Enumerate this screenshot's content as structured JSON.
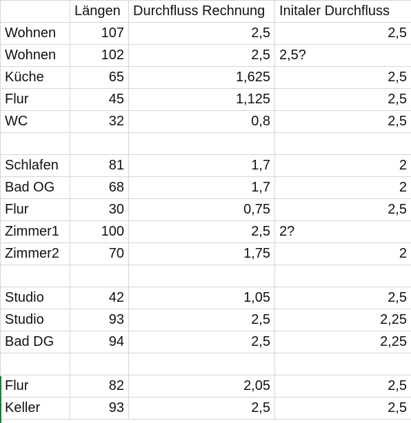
{
  "columns": {
    "room": "",
    "lengths": "Längen",
    "calc_flow": "Durchfluss Rechnung",
    "initial_flow": "Initaler Durchfluss"
  },
  "rows": [
    {
      "room": "Wohnen",
      "len": "107",
      "calc": "2,5",
      "init": "2,5",
      "init_align": "right"
    },
    {
      "room": "Wohnen",
      "len": "102",
      "calc": "2,5",
      "init": "2,5?",
      "init_align": "left"
    },
    {
      "room": "Küche",
      "len": "65",
      "calc": "1,625",
      "init": "2,5",
      "init_align": "right"
    },
    {
      "room": "Flur",
      "len": "45",
      "calc": "1,125",
      "init": "2,5",
      "init_align": "right"
    },
    {
      "room": "WC",
      "len": "32",
      "calc": "0,8",
      "init": "2,5",
      "init_align": "right"
    },
    {
      "room": "",
      "len": "",
      "calc": "",
      "init": "",
      "init_align": "right"
    },
    {
      "room": "Schlafen",
      "len": "81",
      "calc": "1,7",
      "init": "2",
      "init_align": "right"
    },
    {
      "room": "Bad OG",
      "len": "68",
      "calc": "1,7",
      "init": "2",
      "init_align": "right"
    },
    {
      "room": "Flur",
      "len": "30",
      "calc": "0,75",
      "init": "2,5",
      "init_align": "right"
    },
    {
      "room": "Zimmer1",
      "len": "100",
      "calc": "2,5",
      "init": "2?",
      "init_align": "left"
    },
    {
      "room": "Zimmer2",
      "len": "70",
      "calc": "1,75",
      "init": "2",
      "init_align": "right"
    },
    {
      "room": "",
      "len": "",
      "calc": "",
      "init": "",
      "init_align": "right"
    },
    {
      "room": "Studio",
      "len": "42",
      "calc": "1,05",
      "init": "2,5",
      "init_align": "right"
    },
    {
      "room": "Studio",
      "len": "93",
      "calc": "2,5",
      "init": "2,25",
      "init_align": "right"
    },
    {
      "room": "Bad DG",
      "len": "94",
      "calc": "2,5",
      "init": "2,25",
      "init_align": "right"
    },
    {
      "room": "",
      "len": "",
      "calc": "",
      "init": "",
      "init_align": "right"
    },
    {
      "room": "Flur",
      "len": "82",
      "calc": "2,05",
      "init": "2,5",
      "init_align": "right"
    },
    {
      "room": "Keller",
      "len": "93",
      "calc": "2,5",
      "init": "2,5",
      "init_align": "right"
    }
  ]
}
